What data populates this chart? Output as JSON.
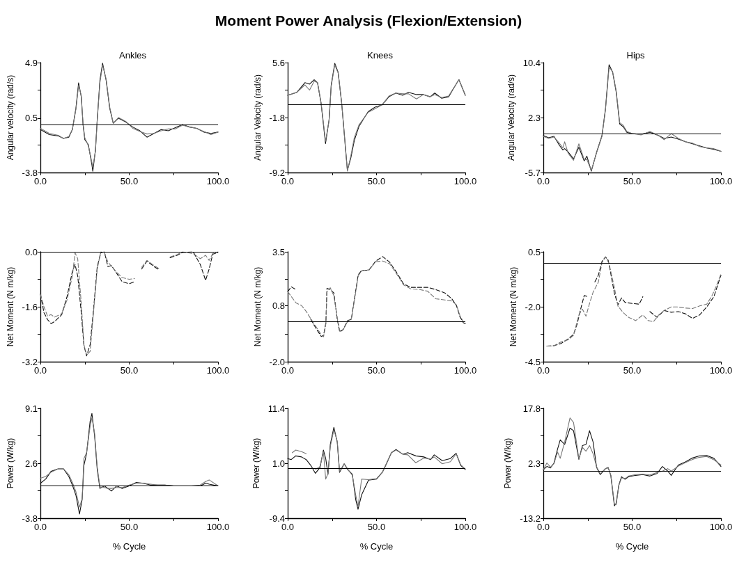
{
  "chart_data": [
    {
      "type": "line",
      "title": "Ankles",
      "ylabel": "Angular velocity (rad/s)",
      "annotations": [
        "Moment Power Analysis (Flexion/Extension)"
      ],
      "xlim": [
        0,
        100
      ],
      "xticks": [
        {
          "value": 0,
          "label": "0.0"
        },
        {
          "value": 25,
          "label": null
        },
        {
          "value": 50,
          "label": "50.0"
        },
        {
          "value": 75,
          "label": null
        },
        {
          "value": 100,
          "label": "100.0"
        }
      ],
      "ylim": [
        -3.8,
        4.9
      ],
      "yticks": [
        -3.8,
        {
          "value": -1.625,
          "label": null
        },
        0.5,
        {
          "value": 2.725,
          "label": null
        },
        4.9
      ],
      "marker": "none",
      "line_style": "solid",
      "ref_lines": [
        {
          "axis": "y",
          "value": 0,
          "color": "#000000"
        }
      ],
      "series": [
        {
          "color": "#111111",
          "x": [
            0,
            5,
            10,
            13,
            16,
            18,
            20,
            21.5,
            23,
            24,
            25,
            27,
            29,
            29.5,
            31,
            32,
            33.5,
            35,
            37,
            39,
            41,
            44,
            48,
            52,
            56,
            60,
            64,
            68,
            72,
            76,
            80,
            84,
            88,
            92,
            96,
            100
          ],
          "values": [
            -0.4,
            -0.8,
            -0.9,
            -1.1,
            -1.0,
            -0.4,
            1.3,
            3.3,
            2.2,
            0.0,
            -1.2,
            -1.6,
            -3.2,
            -3.7,
            -2.0,
            0.4,
            3.5,
            4.85,
            3.5,
            1.3,
            0.1,
            0.5,
            0.2,
            -0.2,
            -0.5,
            -1.0,
            -0.7,
            -0.4,
            -0.5,
            -0.25,
            0.0,
            -0.2,
            -0.3,
            -0.6,
            -0.7,
            -0.6
          ]
        },
        {
          "color": "#777777",
          "x": [
            0,
            5,
            10,
            13,
            16,
            18,
            20,
            21.5,
            23,
            24,
            25,
            27,
            29,
            29.5,
            31,
            32,
            33.5,
            35,
            37,
            39,
            41,
            44,
            48,
            52,
            56,
            60,
            64,
            68,
            72,
            76,
            80,
            84,
            88,
            92,
            96,
            100
          ],
          "values": [
            -0.3,
            -0.7,
            -0.85,
            -1.1,
            -0.95,
            -0.4,
            1.2,
            3.1,
            2.3,
            0.1,
            -1.05,
            -1.7,
            -3.0,
            -3.4,
            -2.1,
            0.3,
            3.3,
            4.7,
            3.6,
            1.4,
            0.1,
            0.55,
            0.25,
            -0.3,
            -0.55,
            -0.75,
            -0.7,
            -0.5,
            -0.35,
            -0.35,
            -0.05,
            -0.2,
            -0.3,
            -0.55,
            -0.8,
            -0.6
          ]
        }
      ]
    },
    {
      "type": "line",
      "title": "Knees",
      "ylabel": "Angular Velocity (rad/s)",
      "xlim": [
        0,
        100
      ],
      "xticks": [
        {
          "value": 0,
          "label": "0.0"
        },
        {
          "value": 25,
          "label": null
        },
        {
          "value": 50,
          "label": "50.0"
        },
        {
          "value": 75,
          "label": null
        },
        {
          "value": 100,
          "label": "100.0"
        }
      ],
      "ylim": [
        -9.2,
        5.6
      ],
      "yticks": [
        -9.2,
        {
          "value": -5.5,
          "label": null
        },
        -1.8,
        {
          "value": 1.9,
          "label": null
        },
        5.6
      ],
      "marker": "none",
      "line_style": "solid",
      "ref_lines": [
        {
          "axis": "y",
          "value": 0,
          "color": "#000000"
        }
      ],
      "series": [
        {
          "color": "#111111",
          "x": [
            0,
            5.2,
            9.7,
            12.3,
            14.9,
            16.8,
            18.8,
            21.3,
            23.3,
            24.5,
            26.5,
            28.4,
            30.4,
            32.3,
            33.6,
            35.5,
            37.5,
            40.1,
            45.3,
            49.2,
            53.1,
            57,
            60.9,
            64.7,
            68,
            72.5,
            76.4,
            80.2,
            82.8,
            86.7,
            90.6,
            93.8,
            96.4,
            100
          ],
          "values": [
            1.2,
            1.6,
            2.9,
            2.7,
            3.3,
            2.9,
            0.1,
            -5.3,
            -2.1,
            2.6,
            5.5,
            4.3,
            0.1,
            -5.2,
            -8.9,
            -7.3,
            -4.9,
            -3.0,
            -1.0,
            -0.4,
            -0.1,
            1.0,
            1.5,
            1.2,
            1.6,
            1.3,
            1.3,
            1.0,
            1.5,
            0.8,
            1.0,
            2.3,
            3.3,
            1.2
          ]
        },
        {
          "color": "#777777",
          "x": [
            0,
            5.2,
            9.7,
            12.3,
            14.9,
            16.8,
            18.8,
            21.3,
            23.3,
            24.5,
            26.5,
            28.4,
            30.4,
            32.3,
            33.6,
            35.5,
            37.5,
            40.1,
            45.3,
            49.2,
            53.1,
            57,
            60.9,
            64.7,
            68,
            72.5,
            76.4,
            80.2,
            82.8,
            86.7,
            90.6,
            93.8,
            96.4,
            100
          ],
          "values": [
            1.2,
            1.6,
            2.6,
            1.9,
            3.1,
            2.9,
            0.2,
            -5.0,
            -2.2,
            2.4,
            5.3,
            4.2,
            0.2,
            -5.4,
            -9.0,
            -7.0,
            -4.5,
            -2.8,
            -1.1,
            -0.6,
            -0.1,
            1.1,
            1.5,
            1.4,
            1.4,
            0.7,
            1.3,
            1.0,
            1.3,
            0.9,
            1.1,
            2.3,
            3.3,
            1.2
          ]
        }
      ]
    },
    {
      "type": "line",
      "title": "Hips",
      "ylabel": "Angular Velocity (rad/s)",
      "xlim": [
        0,
        100
      ],
      "xticks": [
        {
          "value": 0,
          "label": "0.0"
        },
        {
          "value": 25,
          "label": null
        },
        {
          "value": 50,
          "label": "50.0"
        },
        {
          "value": 75,
          "label": null
        },
        {
          "value": 100,
          "label": "100.0"
        }
      ],
      "ylim": [
        -5.7,
        10.4
      ],
      "yticks": [
        -5.7,
        {
          "value": -1.675,
          "label": null
        },
        2.3,
        {
          "value": 6.375,
          "label": null
        },
        10.4
      ],
      "marker": "none",
      "line_style": "solid",
      "ref_lines": [
        {
          "axis": "y",
          "value": 0,
          "color": "#000000"
        }
      ],
      "series": [
        {
          "color": "#111111",
          "x": [
            0,
            3,
            6,
            9,
            11,
            12,
            14,
            17,
            20,
            23,
            24.5,
            27,
            30,
            33,
            35,
            37,
            39,
            41,
            43,
            45,
            47,
            50,
            55,
            60,
            65,
            68,
            72,
            76,
            80,
            84,
            88,
            92,
            96,
            100
          ],
          "values": [
            -0.3,
            -0.6,
            -0.4,
            -1.7,
            -2.4,
            -2.2,
            -2.7,
            -3.7,
            -2.0,
            -4.0,
            -3.3,
            -5.5,
            -2.7,
            -0.3,
            3.7,
            10.1,
            9.0,
            6.1,
            1.4,
            1.0,
            0.2,
            0.0,
            -0.1,
            0.2,
            -0.3,
            -0.7,
            -0.5,
            -0.8,
            -1.2,
            -1.5,
            -1.8,
            -2.1,
            -2.3,
            -2.6
          ]
        },
        {
          "color": "#777777",
          "x": [
            0,
            3,
            6,
            9,
            11,
            12,
            14,
            17,
            20,
            23,
            24.5,
            27,
            30,
            33,
            35,
            37,
            39,
            41,
            43,
            45,
            47,
            50,
            55,
            60,
            65,
            68,
            72,
            76,
            80,
            84,
            88,
            92,
            96,
            100
          ],
          "values": [
            -0.4,
            -0.7,
            -0.5,
            -1.4,
            -2.1,
            -1.2,
            -2.9,
            -3.9,
            -1.5,
            -3.8,
            -3.8,
            -5.4,
            -2.8,
            -0.4,
            3.5,
            9.7,
            9.1,
            6.3,
            1.6,
            1.2,
            0.3,
            0.0,
            -0.2,
            0.3,
            -0.3,
            -0.9,
            0.0,
            -0.7,
            -1.2,
            -1.4,
            -1.9,
            -2.1,
            -2.2,
            -2.6
          ]
        }
      ]
    },
    {
      "type": "line",
      "ylabel": "Net Moment (N m/kg)",
      "xlim": [
        0,
        100
      ],
      "xticks": [
        {
          "value": 0,
          "label": "0.0"
        },
        {
          "value": 25,
          "label": null
        },
        {
          "value": 50,
          "label": "50.0"
        },
        {
          "value": 75,
          "label": null
        },
        {
          "value": 100,
          "label": "100.0"
        }
      ],
      "ylim": [
        -3.2,
        0
      ],
      "yticks": [
        -3.2,
        {
          "value": -2.4,
          "label": null
        },
        -1.6,
        {
          "value": -0.8,
          "label": null
        },
        {
          "value": 0,
          "label": "0.0"
        }
      ],
      "marker": "none",
      "line_style": "dashed",
      "ref_lines": [
        {
          "axis": "y",
          "value": 0,
          "color": "#000000"
        }
      ],
      "series": [
        {
          "color": "#111111",
          "x": [
            0,
            2,
            4,
            6,
            8,
            12,
            15,
            18,
            19.5,
            21,
            23,
            24.5,
            26,
            28,
            30,
            32,
            34,
            36,
            38,
            40,
            43,
            46,
            50,
            53,
            55,
            57,
            60,
            64,
            67,
            70,
            73,
            77,
            80,
            86,
            90,
            93,
            95,
            97,
            100
          ],
          "values": [
            -1.23,
            -1.77,
            -1.97,
            -2.09,
            -2.03,
            -1.83,
            -1.3,
            -0.57,
            -0.37,
            -0.7,
            -1.77,
            -2.73,
            -3.03,
            -2.7,
            -1.63,
            -0.43,
            -0.03,
            0,
            -0.43,
            -0.4,
            -0.63,
            -0.87,
            -0.93,
            -0.87,
            null,
            -0.5,
            -0.27,
            -0.43,
            -0.53,
            null,
            -0.17,
            -0.1,
            -0.02,
            0,
            -0.37,
            -0.83,
            -0.5,
            -0.07,
            -0.02
          ]
        },
        {
          "color": "#777777",
          "x": [
            0,
            2,
            4,
            6,
            8,
            12,
            15,
            18,
            19.5,
            21,
            23,
            24.5,
            26,
            28,
            30,
            32,
            34,
            36,
            38,
            40,
            43,
            46,
            50,
            53,
            55,
            57,
            60,
            64,
            67,
            70,
            73,
            77,
            80,
            86,
            90,
            93,
            95,
            97,
            100
          ],
          "values": [
            -1.23,
            -1.6,
            -1.87,
            -1.83,
            -1.9,
            -1.8,
            -1.4,
            -0.7,
            -0.03,
            -0.2,
            -1.5,
            -2.7,
            -3.0,
            -2.9,
            -1.7,
            -0.5,
            0,
            -0.02,
            -0.3,
            -0.42,
            -0.6,
            -0.75,
            -0.8,
            -0.78,
            null,
            -0.45,
            -0.25,
            -0.4,
            -0.5,
            null,
            -0.15,
            -0.08,
            0,
            -0.05,
            -0.2,
            -0.1,
            -0.25,
            -0.05,
            0
          ]
        }
      ]
    },
    {
      "type": "line",
      "ylabel": "Net Moment (N m/kg)",
      "xlim": [
        0,
        100
      ],
      "xticks": [
        {
          "value": 0,
          "label": "0.0"
        },
        {
          "value": 25,
          "label": null
        },
        {
          "value": 50,
          "label": "50.0"
        },
        {
          "value": 75,
          "label": null
        },
        {
          "value": 100,
          "label": "100.0"
        }
      ],
      "ylim": [
        -2.0,
        3.5
      ],
      "yticks": [
        {
          "value": -2.0,
          "label": "-2.0"
        },
        {
          "value": -0.625,
          "label": null
        },
        0.8,
        {
          "value": 2.125,
          "label": null
        },
        3.5
      ],
      "marker": "none",
      "line_style": "dashed",
      "ref_lines": [
        {
          "axis": "y",
          "value": 0,
          "color": "#000000"
        }
      ],
      "series": [
        {
          "color": "#111111",
          "x": [
            0,
            2,
            4.6,
            7.8,
            10.4,
            13,
            15.6,
            18.9,
            20.2,
            21.5,
            22.1,
            24,
            26,
            27.9,
            29.3,
            31.2,
            33.8,
            35.8,
            37.8,
            39.7,
            41.7,
            45.7,
            49.6,
            53.5,
            57.4,
            61.3,
            65.2,
            69.1,
            74.3,
            78.8,
            83.3,
            88.5,
            92.4,
            95,
            97,
            98.9,
            100
          ],
          "values": [
            1.5,
            1.75,
            1.61,
            null,
            null,
            0.12,
            -0.28,
            -0.74,
            -0.68,
            -0.05,
            1.67,
            1.61,
            1.44,
            0.12,
            -0.51,
            -0.39,
            0.06,
            0.12,
            1.27,
            2.35,
            2.58,
            2.58,
            3.04,
            3.26,
            2.98,
            2.47,
            1.9,
            1.72,
            1.72,
            1.72,
            1.61,
            1.44,
            1.15,
            0.81,
            0.24,
            -0.05,
            -0.09
          ]
        },
        {
          "color": "#777777",
          "x": [
            0,
            2,
            4.6,
            7.8,
            10.4,
            13,
            15.6,
            18.9,
            20.2,
            21.5,
            22.1,
            24,
            26,
            27.9,
            29.3,
            31.2,
            33.8,
            35.8,
            37.8,
            39.7,
            41.7,
            45.7,
            49.6,
            53.5,
            57.4,
            61.3,
            65.2,
            69.1,
            74.3,
            78.8,
            83.3,
            88.5,
            92.4,
            95,
            97,
            98.9,
            100
          ],
          "values": [
            1.5,
            1.27,
            0.95,
            0.81,
            0.52,
            0.15,
            -0.2,
            -0.65,
            -0.75,
            -0.1,
            1.5,
            1.7,
            1.3,
            0.2,
            -0.45,
            -0.4,
            0.02,
            0.15,
            1.2,
            2.3,
            2.55,
            2.6,
            3.0,
            3.04,
            2.9,
            2.4,
            1.85,
            1.65,
            1.61,
            1.53,
            1.15,
            1.09,
            1.04,
            0.85,
            0.3,
            0.0,
            -0.05
          ]
        }
      ]
    },
    {
      "type": "line",
      "ylabel": "Net Moment (N m/kg)",
      "xlim": [
        0,
        100
      ],
      "xticks": [
        {
          "value": 0,
          "label": "0.0"
        },
        {
          "value": 25,
          "label": null
        },
        {
          "value": 50,
          "label": "50.0"
        },
        {
          "value": 75,
          "label": null
        },
        {
          "value": 100,
          "label": "100.0"
        }
      ],
      "ylim": [
        -4.5,
        0.5
      ],
      "yticks": [
        -4.5,
        {
          "value": -3.25,
          "label": null
        },
        {
          "value": -2.0,
          "label": "-2.0"
        },
        {
          "value": -0.75,
          "label": null
        },
        0.5
      ],
      "marker": "none",
      "line_style": "dashed",
      "ref_lines": [
        {
          "axis": "y",
          "value": 0,
          "color": "#000000"
        }
      ],
      "series": [
        {
          "color": "#111111",
          "x": [
            2,
            6,
            10,
            14,
            17,
            19,
            21,
            23,
            25,
            27,
            29,
            31,
            33,
            35,
            36.5,
            38,
            40,
            42,
            44,
            46,
            50,
            54,
            56,
            58,
            60,
            64,
            68,
            72,
            76,
            80,
            84,
            88,
            92,
            96,
            100
          ],
          "values": [
            -3.79,
            -3.77,
            -3.67,
            -3.46,
            -3.26,
            -2.79,
            -2.11,
            -1.49,
            -1.54,
            null,
            -0.87,
            -0.56,
            0.06,
            0.27,
            0.12,
            -0.51,
            -1.39,
            -1.91,
            -1.6,
            -1.8,
            -1.85,
            -1.88,
            -1.54,
            null,
            -2.22,
            -2.48,
            -2.17,
            -2.25,
            -2.22,
            -2.32,
            -2.53,
            -2.37,
            -2.01,
            -1.54,
            -0.56
          ]
        },
        {
          "color": "#777777",
          "x": [
            2,
            6,
            10,
            14,
            17,
            20,
            22,
            24,
            26,
            28,
            31,
            33,
            35,
            37,
            40,
            42,
            45,
            48,
            52,
            56,
            59,
            62,
            65,
            68,
            72,
            76,
            80,
            84,
            88,
            92,
            95,
            97,
            100
          ],
          "values": [
            -3.79,
            -3.77,
            -3.6,
            -3.5,
            -3.3,
            -2.37,
            -2.11,
            -2.43,
            -1.85,
            -1.34,
            -0.87,
            0.0,
            0.27,
            -0.04,
            -1.13,
            -1.97,
            -2.27,
            -2.48,
            -2.63,
            -2.37,
            -2.63,
            -2.68,
            -2.37,
            -2.17,
            -2.01,
            -2.01,
            -2.06,
            -2.08,
            -1.96,
            -1.88,
            -1.49,
            -1.13,
            -0.51
          ]
        }
      ]
    },
    {
      "type": "line",
      "ylabel": "Power (W/kg)",
      "xlabel": "% Cycle",
      "xlim": [
        0,
        100
      ],
      "xticks": [
        {
          "value": 0,
          "label": "0.0"
        },
        {
          "value": 25,
          "label": null
        },
        {
          "value": 50,
          "label": "50.0"
        },
        {
          "value": 75,
          "label": null
        },
        {
          "value": 100,
          "label": "100.0"
        }
      ],
      "ylim": [
        -3.8,
        9.1
      ],
      "yticks": [
        -3.8,
        {
          "value": -0.575,
          "label": null
        },
        2.6,
        {
          "value": 5.875,
          "label": null
        },
        9.1
      ],
      "marker": "none",
      "line_style": "solid",
      "ref_lines": [
        {
          "axis": "y",
          "value": 0,
          "color": "#000000"
        }
      ],
      "series": [
        {
          "color": "#111111",
          "x": [
            0,
            3,
            6,
            10,
            13,
            16,
            18,
            20,
            22,
            23.5,
            24.5,
            26,
            28,
            29,
            30.5,
            32,
            33.5,
            36,
            38,
            40,
            43,
            46,
            50,
            54,
            58,
            62,
            66,
            70,
            75,
            80,
            85,
            90,
            93,
            95,
            100
          ],
          "values": [
            0.3,
            0.8,
            1.7,
            2.0,
            2.0,
            1.1,
            0.1,
            -1.1,
            -3.3,
            -1.6,
            2.4,
            3.8,
            7.6,
            8.5,
            5.9,
            1.9,
            -0.3,
            0.0,
            -0.3,
            -0.6,
            0.0,
            -0.3,
            0.0,
            0.4,
            0.3,
            0.1,
            0.1,
            0.1,
            0.0,
            0.0,
            0.0,
            0.0,
            0.3,
            0.2,
            0.0
          ]
        },
        {
          "color": "#777777",
          "x": [
            0,
            3,
            6,
            10,
            13,
            16,
            18,
            20,
            22,
            23.5,
            24.5,
            26,
            28,
            29,
            30.5,
            32,
            33.5,
            36,
            38,
            40,
            43,
            46,
            50,
            54,
            58,
            62,
            66,
            70,
            75,
            80,
            85,
            90,
            93,
            95,
            100
          ],
          "values": [
            0.9,
            1.1,
            1.6,
            2.0,
            2.0,
            1.3,
            0.4,
            -0.7,
            -2.5,
            -1.5,
            3.2,
            3.9,
            7.0,
            8.0,
            6.2,
            2.2,
            -0.1,
            -0.2,
            -0.3,
            -0.3,
            -0.2,
            -0.2,
            0.1,
            0.3,
            0.3,
            0.2,
            0.1,
            0.1,
            0.0,
            0.0,
            0.0,
            0.1,
            0.5,
            0.7,
            0.0
          ]
        }
      ]
    },
    {
      "type": "line",
      "ylabel": "Power (W/kg)",
      "xlabel": "% Cycle",
      "xlim": [
        0,
        100
      ],
      "xticks": [
        {
          "value": 0,
          "label": "0.0"
        },
        {
          "value": 25,
          "label": null
        },
        {
          "value": 50,
          "label": "50.0"
        },
        {
          "value": 75,
          "label": null
        },
        {
          "value": 100,
          "label": "100.0"
        }
      ],
      "ylim": [
        -9.4,
        11.4
      ],
      "yticks": [
        -9.4,
        {
          "value": -4.2,
          "label": null
        },
        {
          "value": 1.0,
          "label": "1.0"
        },
        {
          "value": 6.2,
          "label": null
        },
        11.4
      ],
      "marker": "none",
      "line_style": "solid",
      "ref_lines": [
        {
          "axis": "y",
          "value": 0,
          "color": "#000000"
        }
      ],
      "series": [
        {
          "color": "#111111",
          "x": [
            0,
            2,
            4.5,
            7.8,
            10.4,
            13,
            15.6,
            18.2,
            20.1,
            21.4,
            22.7,
            24,
            26,
            27.9,
            29.2,
            31.8,
            33.8,
            36.4,
            38.3,
            39.6,
            41.6,
            45.5,
            50,
            53.3,
            55.2,
            58.4,
            61,
            64.9,
            67.6,
            72.1,
            76.6,
            80.5,
            82.5,
            87,
            91.6,
            94.8,
            97.4,
            100
          ],
          "values": [
            1.9,
            1.7,
            2.4,
            2.2,
            1.7,
            0.6,
            -0.9,
            0.2,
            3.5,
            1.9,
            -1.1,
            4.6,
            7.8,
            5.0,
            -0.7,
            0.9,
            -0.2,
            -1.1,
            -5.9,
            -7.7,
            -5.0,
            -2.2,
            -2.0,
            -0.7,
            0.6,
            3.0,
            3.6,
            2.7,
            3.0,
            2.4,
            2.2,
            1.7,
            2.6,
            1.5,
            1.9,
            2.9,
            0.6,
            -0.2
          ]
        },
        {
          "color": "#777777",
          "x": [
            2.6,
            4.5,
            7.8,
            10.4,
            13,
            15.6,
            18.2,
            20.1,
            21.4,
            22.7,
            24,
            26,
            27.9,
            29.2,
            31.8,
            33.8,
            36.4,
            38.3,
            39.6,
            41.6,
            45.5,
            50,
            53.3,
            55.2,
            58.4,
            61,
            64.9,
            67.6,
            72.1,
            76.6,
            80.5,
            82.5,
            87,
            91.6,
            94.8,
            97.4,
            100
          ],
          "values": [
            3.0,
            3.5,
            3.2,
            2.8,
            null,
            -0.2,
            0.4,
            3.2,
            -2.0,
            -0.9,
            4.2,
            7.3,
            5.2,
            -0.5,
            0.9,
            -0.1,
            -1.3,
            -5.0,
            -7.2,
            -2.0,
            -2.1,
            -1.9,
            -0.7,
            0.7,
            3.0,
            3.5,
            2.7,
            2.6,
            1.1,
            2.0,
            1.8,
            2.2,
            0.9,
            1.3,
            2.8,
            0.7,
            -0.1
          ]
        }
      ]
    },
    {
      "type": "line",
      "ylabel": "Power (W/kg)",
      "xlabel": "% Cycle",
      "xlim": [
        0,
        100
      ],
      "xticks": [
        {
          "value": 0,
          "label": "0.0"
        },
        {
          "value": 25,
          "label": null
        },
        {
          "value": 50,
          "label": "50.0"
        },
        {
          "value": 75,
          "label": null
        },
        {
          "value": 100,
          "label": "100.0"
        }
      ],
      "ylim": [
        -13.2,
        17.8
      ],
      "yticks": [
        -13.2,
        {
          "value": -5.45,
          "label": null
        },
        2.3,
        {
          "value": 10.05,
          "label": null
        },
        17.8
      ],
      "marker": "none",
      "line_style": "solid",
      "ref_lines": [
        {
          "axis": "y",
          "value": 0,
          "color": "#000000"
        }
      ],
      "series": [
        {
          "color": "#111111",
          "x": [
            0,
            2,
            4,
            6,
            8,
            9.5,
            12,
            15,
            17,
            20,
            22,
            24,
            26,
            28,
            30,
            32,
            35,
            36.5,
            38,
            40,
            41,
            42.5,
            44,
            46,
            48,
            52,
            56,
            60,
            64,
            67,
            70,
            72,
            76,
            80,
            84,
            88,
            92,
            96,
            100
          ],
          "values": [
            0.5,
            1.4,
            1.0,
            2.4,
            6.3,
            8.9,
            7.6,
            12.2,
            11.5,
            3.4,
            7.3,
            7.6,
            11.5,
            8.3,
            1.1,
            -0.9,
            0.8,
            1.1,
            -1.2,
            -9.7,
            -9.0,
            -3.8,
            -1.5,
            -2.2,
            -1.5,
            -1.1,
            -0.9,
            -1.3,
            -0.6,
            1.4,
            0.1,
            -1.1,
            1.8,
            2.7,
            3.8,
            4.4,
            4.5,
            3.7,
            1.4
          ]
        },
        {
          "color": "#777777",
          "x": [
            0,
            2,
            4,
            6,
            8,
            9.5,
            12,
            15,
            17,
            20,
            22,
            24,
            26,
            28,
            30,
            32,
            35,
            36.5,
            38,
            40,
            41,
            42.5,
            44,
            46,
            48,
            52,
            56,
            60,
            64,
            67,
            70,
            72,
            76,
            80,
            84,
            88,
            92,
            96,
            100
          ],
          "values": [
            0.5,
            2.4,
            1.2,
            2.2,
            5.5,
            3.7,
            8.3,
            15.1,
            13.8,
            3.6,
            6.8,
            5.7,
            7.3,
            5.0,
            1.3,
            -0.7,
            0.8,
            1.0,
            -1.0,
            -9.2,
            -9.4,
            -4.0,
            -1.8,
            -2.0,
            -1.3,
            -0.9,
            -0.8,
            -1.0,
            -0.3,
            0.1,
            0.8,
            0.1,
            1.5,
            2.5,
            3.4,
            4.0,
            4.2,
            3.3,
            1.8
          ]
        }
      ]
    }
  ]
}
